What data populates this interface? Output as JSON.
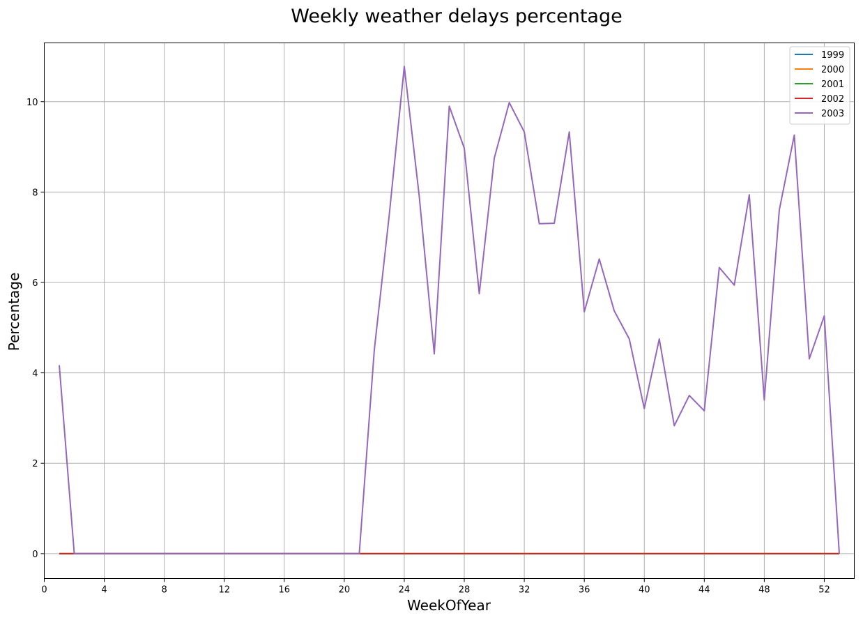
{
  "chart_data": {
    "type": "line",
    "title": "Weekly weather delays percentage",
    "xlabel": "WeekOfYear",
    "ylabel": "Percentage",
    "xlim": [
      0,
      54
    ],
    "ylim": [
      -0.55,
      11.3
    ],
    "xticks": [
      0,
      4,
      8,
      12,
      16,
      20,
      24,
      28,
      32,
      36,
      40,
      44,
      48,
      52
    ],
    "yticks": [
      0,
      2,
      4,
      6,
      8,
      10
    ],
    "grid": true,
    "legend_position": "upper right",
    "x": [
      1,
      2,
      3,
      4,
      5,
      6,
      7,
      8,
      9,
      10,
      11,
      12,
      13,
      14,
      15,
      16,
      17,
      18,
      19,
      20,
      21,
      22,
      23,
      24,
      25,
      26,
      27,
      28,
      29,
      30,
      31,
      32,
      33,
      34,
      35,
      36,
      37,
      38,
      39,
      40,
      41,
      42,
      43,
      44,
      45,
      46,
      47,
      48,
      49,
      50,
      51,
      52,
      53
    ],
    "series": [
      {
        "name": "1999",
        "color": "#1f77b4",
        "values": [
          0,
          0,
          0,
          0,
          0,
          0,
          0,
          0,
          0,
          0,
          0,
          0,
          0,
          0,
          0,
          0,
          0,
          0,
          0,
          0,
          0,
          0,
          0,
          0,
          0,
          0,
          0,
          0,
          0,
          0,
          0,
          0,
          0,
          0,
          0,
          0,
          0,
          0,
          0,
          0,
          0,
          0,
          0,
          0,
          0,
          0,
          0,
          0,
          0,
          0,
          0,
          0,
          0
        ]
      },
      {
        "name": "2000",
        "color": "#ff7f0e",
        "values": [
          0,
          0,
          0,
          0,
          0,
          0,
          0,
          0,
          0,
          0,
          0,
          0,
          0,
          0,
          0,
          0,
          0,
          0,
          0,
          0,
          0,
          0,
          0,
          0,
          0,
          0,
          0,
          0,
          0,
          0,
          0,
          0,
          0,
          0,
          0,
          0,
          0,
          0,
          0,
          0,
          0,
          0,
          0,
          0,
          0,
          0,
          0,
          0,
          0,
          0,
          0,
          0,
          0
        ]
      },
      {
        "name": "2001",
        "color": "#2ca02c",
        "values": [
          0,
          0,
          0,
          0,
          0,
          0,
          0,
          0,
          0,
          0,
          0,
          0,
          0,
          0,
          0,
          0,
          0,
          0,
          0,
          0,
          0,
          0,
          0,
          0,
          0,
          0,
          0,
          0,
          0,
          0,
          0,
          0,
          0,
          0,
          0,
          0,
          0,
          0,
          0,
          0,
          0,
          0,
          0,
          0,
          0,
          0,
          0,
          0,
          0,
          0,
          0,
          0,
          0
        ]
      },
      {
        "name": "2002",
        "color": "#d62728",
        "values": [
          0,
          0,
          0,
          0,
          0,
          0,
          0,
          0,
          0,
          0,
          0,
          0,
          0,
          0,
          0,
          0,
          0,
          0,
          0,
          0,
          0,
          0,
          0,
          0,
          0,
          0,
          0,
          0,
          0,
          0,
          0,
          0,
          0,
          0,
          0,
          0,
          0,
          0,
          0,
          0,
          0,
          0,
          0,
          0,
          0,
          0,
          0,
          0,
          0,
          0,
          0,
          0,
          0
        ]
      },
      {
        "name": "2003",
        "color": "#9467bd",
        "values": [
          4.17,
          0,
          0,
          0,
          0,
          0,
          0,
          0,
          0,
          0,
          0,
          0,
          0,
          0,
          0,
          0,
          0,
          0,
          0,
          0,
          0,
          4.5,
          7.5,
          10.78,
          7.9,
          4.42,
          9.9,
          8.97,
          5.75,
          8.75,
          9.98,
          9.33,
          7.3,
          7.31,
          9.33,
          5.35,
          6.52,
          5.37,
          4.75,
          3.21,
          4.75,
          2.83,
          3.5,
          3.16,
          6.33,
          5.94,
          7.94,
          3.4,
          7.6,
          9.26,
          4.31,
          5.26,
          0
        ]
      }
    ]
  }
}
